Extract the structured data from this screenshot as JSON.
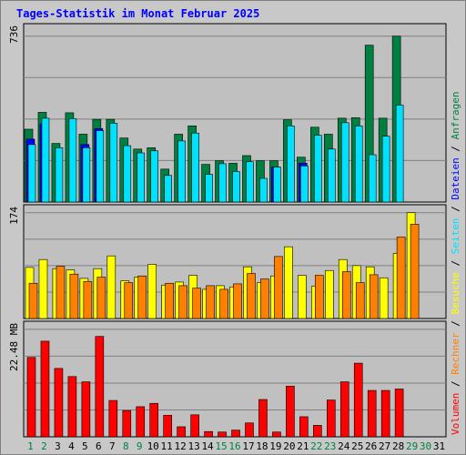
{
  "chart_data": {
    "type": "bar",
    "title": "Tages-Statistik im Monat Februar 2025",
    "days": [
      "1",
      "2",
      "3",
      "4",
      "5",
      "6",
      "7",
      "8",
      "9",
      "10",
      "11",
      "12",
      "13",
      "14",
      "15",
      "16",
      "17",
      "18",
      "19",
      "20",
      "21",
      "22",
      "23",
      "24",
      "25",
      "26",
      "27",
      "28",
      "29",
      "30",
      "31"
    ],
    "weekend_days": [
      "1",
      "2",
      "8",
      "9",
      "15",
      "16",
      "22",
      "23",
      "29",
      "30"
    ],
    "day_label_colors": {
      "weekday": "#000000",
      "weekend": "#008040"
    },
    "panels": [
      {
        "name": "requests-files-pages",
        "ymax": 736,
        "ymax_label": "736",
        "ylim": [
          0,
          736
        ],
        "series": [
          {
            "name": "Anfragen",
            "color": "#008040",
            "values": [
              323,
              398,
              260,
              396,
              301,
              367,
              367,
              284,
              235,
              241,
              146,
              301,
              338,
              167,
              183,
              172,
              206,
              183,
              183,
              365,
              199,
              332,
              301,
              372,
              374,
              696,
              372,
              736,
              0,
              0,
              0
            ]
          },
          {
            "name": "Dateien",
            "color": "#0000ff",
            "values": [
              279,
              347,
              0,
              0,
              255,
              326,
              0,
              0,
              0,
              0,
              0,
              0,
              0,
              0,
              0,
              0,
              0,
              0,
              155,
              0,
              172,
              0,
              0,
              0,
              0,
              0,
              0,
              0,
              0,
              0,
              0
            ]
          },
          {
            "name": "Seiten",
            "color": "#00e0ff",
            "values": [
              255,
              372,
              241,
              370,
              241,
              317,
              350,
              250,
              218,
              227,
              118,
              271,
              306,
              123,
              170,
              135,
              179,
              105,
              155,
              338,
              160,
              296,
              235,
              352,
              338,
              210,
              292,
              430,
              0,
              0,
              0
            ]
          }
        ]
      },
      {
        "name": "visits-hosts",
        "ymax": 174,
        "ymax_label": "174",
        "ylim": [
          0,
          174
        ],
        "series": [
          {
            "name": "Besuche",
            "color": "#ffff00",
            "values": [
              84,
              97,
              82,
              80,
              66,
              82,
              103,
              62,
              68,
              89,
              55,
              60,
              71,
              48,
              54,
              52,
              85,
              59,
              70,
              118,
              71,
              53,
              79,
              97,
              87,
              85,
              67,
              107,
              174,
              0,
              0
            ]
          },
          {
            "name": "Rechner",
            "color": "#ff8000",
            "values": [
              58,
              0,
              86,
              73,
              61,
              68,
              0,
              59,
              70,
              0,
              58,
              54,
              50,
              54,
              48,
              57,
              74,
              65,
              102,
              0,
              0,
              71,
              0,
              77,
              59,
              72,
              0,
              134,
              155,
              0,
              0
            ]
          }
        ]
      },
      {
        "name": "volume",
        "ymax": 22.48,
        "ymax_label": "22.48 MB",
        "ylim": [
          0,
          22.48
        ],
        "series": [
          {
            "name": "Volumen",
            "color": "#ff0000",
            "values": [
              16.6,
              20.0,
              14.3,
              12.6,
              11.5,
              21.0,
              7.6,
              5.5,
              6.3,
              7.0,
              4.5,
              2.1,
              4.6,
              1.1,
              1.0,
              1.4,
              2.9,
              7.8,
              1.0,
              10.6,
              4.2,
              2.4,
              7.7,
              11.5,
              15.4,
              9.7,
              9.7,
              10.0,
              0,
              0,
              0
            ]
          }
        ]
      }
    ],
    "legend_vertical": [
      "Volumen",
      "Rechner",
      "Besuche",
      "Seiten",
      "Dateien",
      "Anfragen"
    ],
    "legend_colors": [
      "#ff0000",
      "#ff8000",
      "#ffff00",
      "#00e0ff",
      "#0000ff",
      "#008040"
    ],
    "legend_separator": " / ",
    "legend_placement": "right, vertical",
    "grid": true
  }
}
